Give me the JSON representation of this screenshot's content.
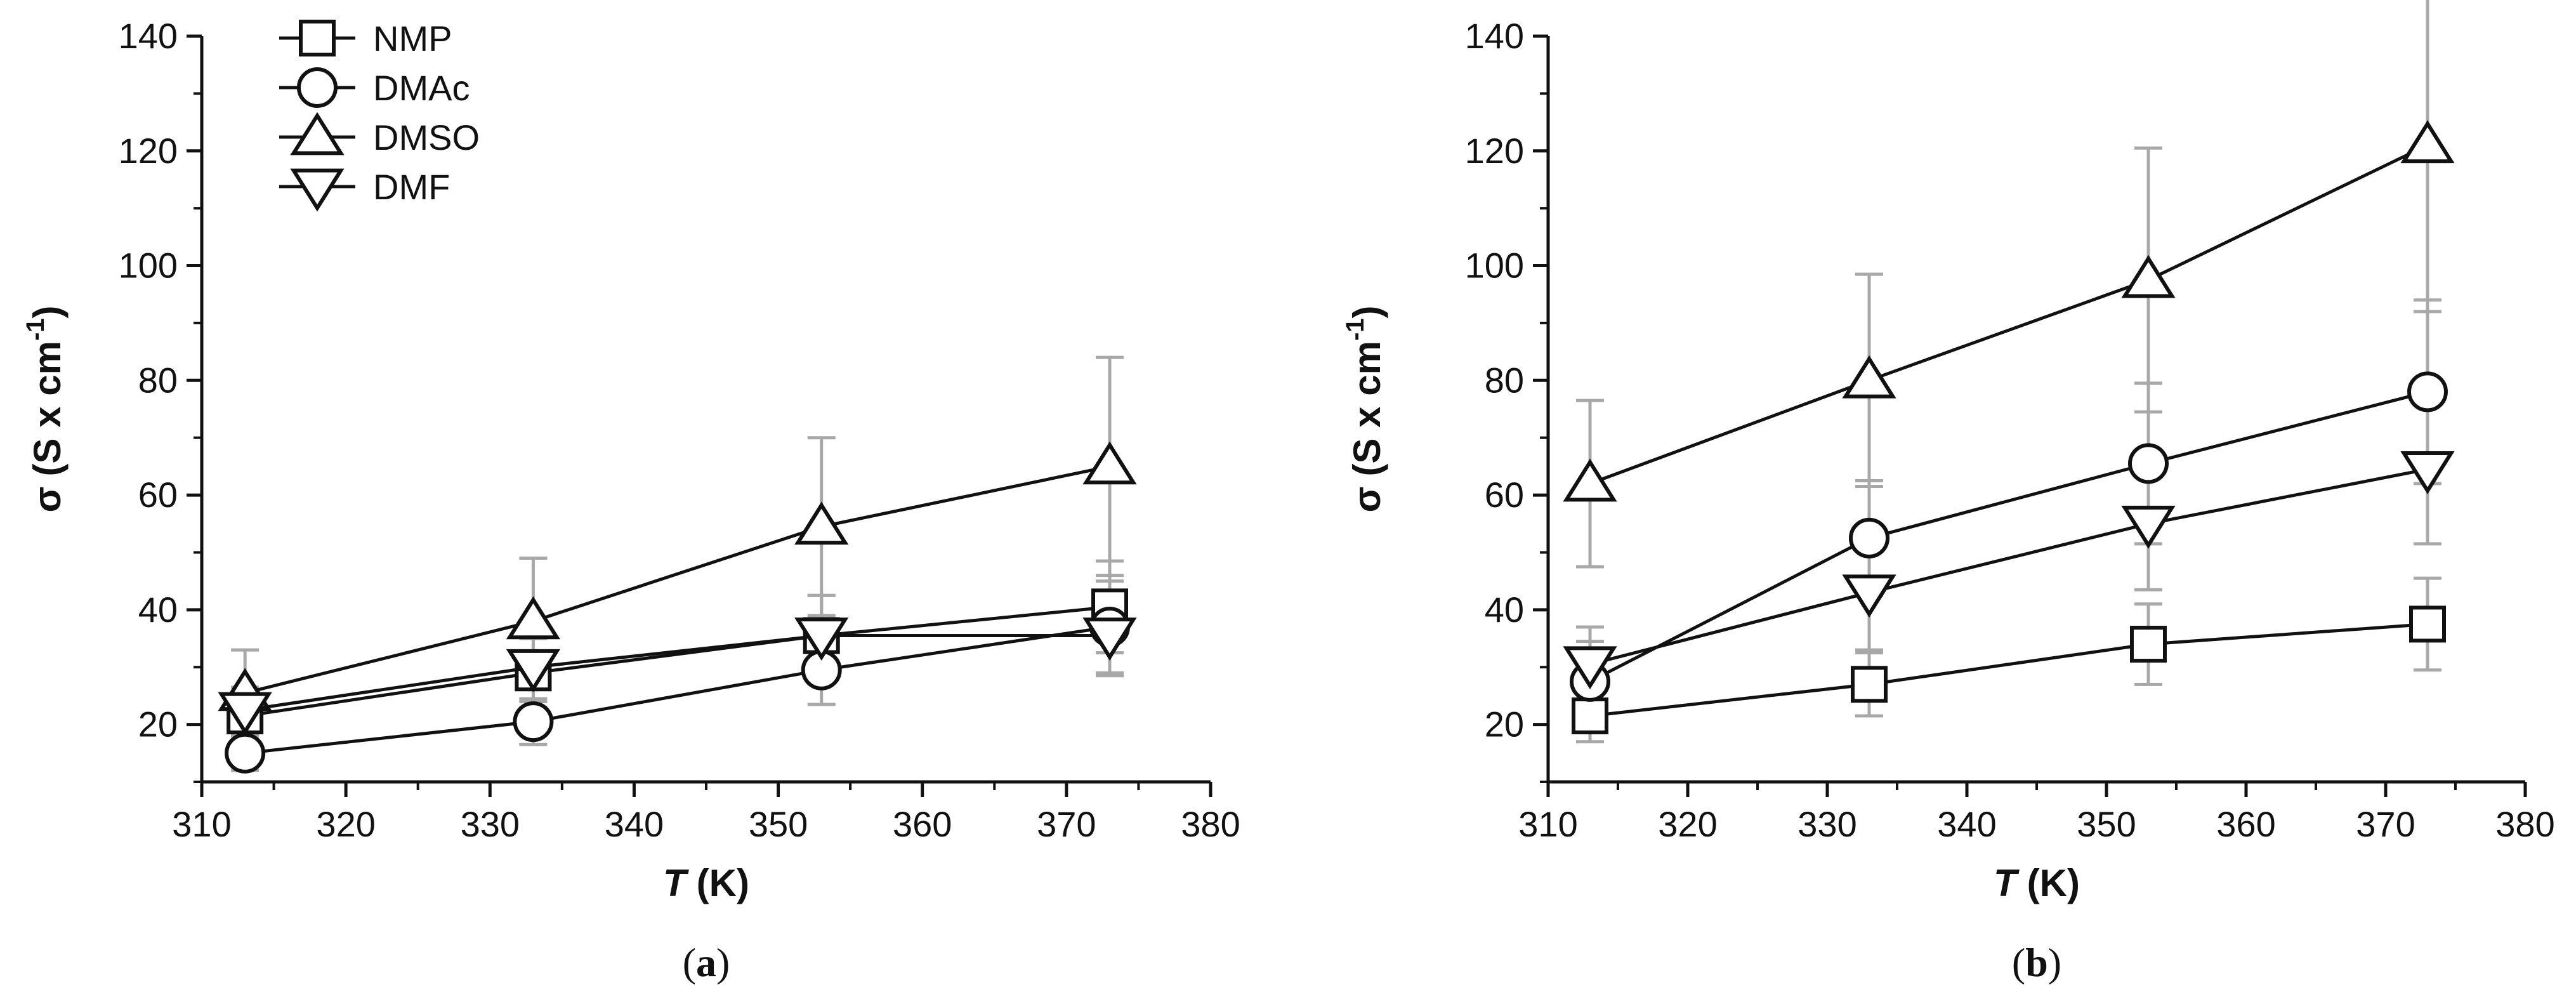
{
  "chart_data": [
    {
      "id": "a",
      "type": "line",
      "panel_label": "a",
      "xlabel_italic": "T",
      "xlabel_unit": "(K)",
      "ylabel_sym": "σ",
      "ylabel_unit": "(S x cm",
      "ylabel_exp": "-1",
      "ylabel_close": ")",
      "xlim": [
        310,
        380
      ],
      "ylim": [
        10,
        140
      ],
      "xticks": [
        310,
        320,
        330,
        340,
        350,
        360,
        370,
        380
      ],
      "yticks": [
        20,
        40,
        60,
        80,
        100,
        120,
        140
      ],
      "x": [
        313,
        333,
        353,
        373
      ],
      "legend_position": "top-left",
      "series": [
        {
          "name": "NMP",
          "marker": "square",
          "values": [
            21.5,
            29,
            35.5,
            40.5
          ],
          "err": [
            3,
            6,
            7,
            8
          ]
        },
        {
          "name": "DMAc",
          "marker": "circle",
          "values": [
            15,
            20.5,
            29.5,
            37
          ],
          "err": [
            3,
            4,
            6,
            8
          ]
        },
        {
          "name": "DMSO",
          "marker": "triangle-up",
          "values": [
            25.5,
            38,
            54.5,
            65
          ],
          "err": [
            7.5,
            11,
            15.5,
            19
          ]
        },
        {
          "name": "DMF",
          "marker": "triangle-down",
          "values": [
            22.5,
            30,
            35.5,
            35.5
          ],
          "err": [
            4,
            6,
            7,
            7
          ]
        }
      ]
    },
    {
      "id": "b",
      "type": "line",
      "panel_label": "b",
      "xlabel_italic": "T",
      "xlabel_unit": "(K)",
      "ylabel_sym": "σ",
      "ylabel_unit": "(S x cm",
      "ylabel_exp": "-1",
      "ylabel_close": ")",
      "xlim": [
        310,
        380
      ],
      "ylim": [
        10,
        140
      ],
      "xticks": [
        310,
        320,
        330,
        340,
        350,
        360,
        370,
        380
      ],
      "yticks": [
        20,
        40,
        60,
        80,
        100,
        120,
        140
      ],
      "x": [
        313,
        333,
        353,
        373
      ],
      "series": [
        {
          "name": "NMP",
          "marker": "square",
          "values": [
            21.5,
            27,
            34,
            37.5
          ],
          "err": [
            4.5,
            5.5,
            7,
            8
          ]
        },
        {
          "name": "DMAc",
          "marker": "circle",
          "values": [
            27.5,
            52.5,
            65.5,
            78
          ],
          "err": [
            7,
            10,
            14,
            16
          ]
        },
        {
          "name": "DMSO",
          "marker": "triangle-up",
          "values": [
            62,
            80,
            97.5,
            121
          ],
          "err": [
            14.5,
            18.5,
            23,
            29
          ]
        },
        {
          "name": "DMF",
          "marker": "triangle-down",
          "values": [
            30.5,
            43,
            55,
            64.5
          ],
          "err": [
            6.5,
            10,
            11.5,
            13
          ]
        }
      ]
    }
  ]
}
